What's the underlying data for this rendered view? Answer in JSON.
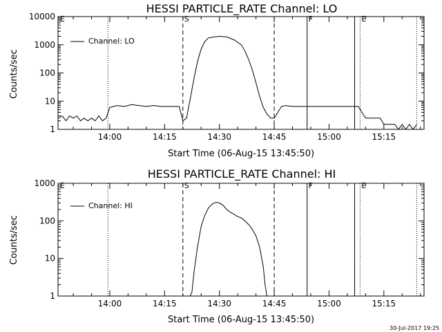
{
  "footer": {
    "timestamp": "30-Jul-2017 19:25"
  },
  "chart_data": [
    {
      "type": "line",
      "title": "HESSI PARTICLE_RATE Channel: LO",
      "xlabel": "Start Time (06-Aug-15 13:45:50)",
      "ylabel": "Counts/sec",
      "y_scale": "log",
      "ylim": [
        1,
        10000
      ],
      "y_ticks": [
        {
          "value": 1,
          "label": "1"
        },
        {
          "value": 10,
          "label": "10"
        },
        {
          "value": 100,
          "label": "100"
        },
        {
          "value": 1000,
          "label": "1000"
        },
        {
          "value": 10000,
          "label": "10000"
        }
      ],
      "xlim": [
        "13:45:50",
        "15:26:00"
      ],
      "x_ticks": [
        "14:00",
        "14:15",
        "14:30",
        "14:45",
        "15:00",
        "15:15"
      ],
      "legend": {
        "label": "Channel: LO",
        "placement": "top-left"
      },
      "markers": [
        {
          "time": "13:46:00",
          "label": "E",
          "style": "none"
        },
        {
          "time": "13:59:30",
          "label": "",
          "style": "dotted"
        },
        {
          "time": "14:20:00",
          "label": "S",
          "style": "dashed"
        },
        {
          "time": "14:45:00",
          "label": "",
          "style": "dashed"
        },
        {
          "time": "14:54:00",
          "label": "F",
          "style": "solid"
        },
        {
          "time": "15:07:00",
          "label": "",
          "style": "solid"
        },
        {
          "time": "15:08:30",
          "label": "E",
          "style": "dotted"
        },
        {
          "time": "15:24:00",
          "label": "",
          "style": "dotted"
        }
      ],
      "series": [
        {
          "name": "Channel: LO",
          "x": [
            "13:46:00",
            "13:47:00",
            "13:48:00",
            "13:49:00",
            "13:50:00",
            "13:51:00",
            "13:52:00",
            "13:53:00",
            "13:54:00",
            "13:55:00",
            "13:56:00",
            "13:57:00",
            "13:58:00",
            "13:59:00",
            "14:00:00",
            "14:02:00",
            "14:04:00",
            "14:06:00",
            "14:08:00",
            "14:10:00",
            "14:12:00",
            "14:14:00",
            "14:16:00",
            "14:18:00",
            "14:19:00",
            "14:20:00",
            "14:21:00",
            "14:22:00",
            "14:23:00",
            "14:24:00",
            "14:25:00",
            "14:26:00",
            "14:27:00",
            "14:28:00",
            "14:30:00",
            "14:32:00",
            "14:34:00",
            "14:36:00",
            "14:37:00",
            "14:38:00",
            "14:39:00",
            "14:40:00",
            "14:41:00",
            "14:42:00",
            "14:43:00",
            "14:44:00",
            "14:45:00",
            "14:47:00",
            "14:48:00",
            "14:50:00",
            "14:52:00",
            "14:54:00",
            "14:56:00",
            "14:58:00",
            "15:00:00",
            "15:02:00",
            "15:04:00",
            "15:06:00",
            "15:07:00",
            "15:08:00",
            "15:10:00",
            "15:12:00",
            "15:13:00",
            "15:14:00",
            "15:15:00",
            "15:16:00",
            "15:17:00",
            "15:18:00",
            "15:19:00",
            "15:20:00",
            "15:21:00",
            "15:22:00",
            "15:23:00",
            "15:24:00"
          ],
          "y": [
            2.5,
            3,
            2,
            3,
            2.5,
            3,
            2,
            2.5,
            2,
            2.5,
            2,
            3,
            2,
            2.5,
            6,
            7,
            6.5,
            7.5,
            7,
            6.5,
            7,
            6.5,
            6.5,
            6.5,
            6.5,
            2,
            2.5,
            12,
            60,
            250,
            700,
            1300,
            1750,
            1850,
            2000,
            1900,
            1500,
            1000,
            600,
            300,
            130,
            45,
            15,
            6,
            3.5,
            2.5,
            2.5,
            6.5,
            7,
            6.5,
            6.5,
            6.5,
            6.5,
            6.5,
            6.5,
            6.5,
            6.5,
            6.5,
            6.5,
            6.5,
            2.5,
            2.5,
            2.5,
            2.5,
            1.5,
            1.5,
            1.5,
            1.5,
            1,
            1.5,
            1,
            1.5,
            1,
            1.5
          ]
        }
      ]
    },
    {
      "type": "line",
      "title": "HESSI PARTICLE_RATE Channel: HI",
      "xlabel": "Start Time (06-Aug-15 13:45:50)",
      "ylabel": "Counts/sec",
      "y_scale": "log",
      "ylim": [
        1,
        1000
      ],
      "y_ticks": [
        {
          "value": 1,
          "label": "1"
        },
        {
          "value": 10,
          "label": "10"
        },
        {
          "value": 100,
          "label": "100"
        },
        {
          "value": 1000,
          "label": "1000"
        }
      ],
      "xlim": [
        "13:45:50",
        "15:26:00"
      ],
      "x_ticks": [
        "14:00",
        "14:15",
        "14:30",
        "14:45",
        "15:00",
        "15:15"
      ],
      "legend": {
        "label": "Channel: HI",
        "placement": "top-left"
      },
      "markers": [
        {
          "time": "13:46:00",
          "label": "E",
          "style": "none"
        },
        {
          "time": "13:59:30",
          "label": "",
          "style": "dotted"
        },
        {
          "time": "14:20:00",
          "label": "S",
          "style": "dashed"
        },
        {
          "time": "14:45:00",
          "label": "",
          "style": "dashed"
        },
        {
          "time": "14:54:00",
          "label": "F",
          "style": "solid"
        },
        {
          "time": "15:07:00",
          "label": "",
          "style": "solid"
        },
        {
          "time": "15:08:30",
          "label": "E",
          "style": "dotted"
        },
        {
          "time": "15:24:00",
          "label": "",
          "style": "dotted"
        }
      ],
      "series": [
        {
          "name": "Channel: HI",
          "x": [
            "14:22:00",
            "14:22:30",
            "14:23:00",
            "14:24:00",
            "14:25:00",
            "14:26:00",
            "14:27:00",
            "14:28:00",
            "14:29:00",
            "14:30:00",
            "14:31:00",
            "14:32:00",
            "14:33:00",
            "14:34:00",
            "14:35:00",
            "14:36:00",
            "14:37:00",
            "14:38:00",
            "14:39:00",
            "14:40:00",
            "14:41:00",
            "14:42:00",
            "14:42:30",
            "14:43:00"
          ],
          "y": [
            1,
            1.3,
            4,
            20,
            70,
            140,
            220,
            280,
            310,
            300,
            260,
            200,
            170,
            150,
            130,
            120,
            100,
            80,
            60,
            40,
            20,
            6,
            2,
            1
          ]
        }
      ]
    }
  ]
}
